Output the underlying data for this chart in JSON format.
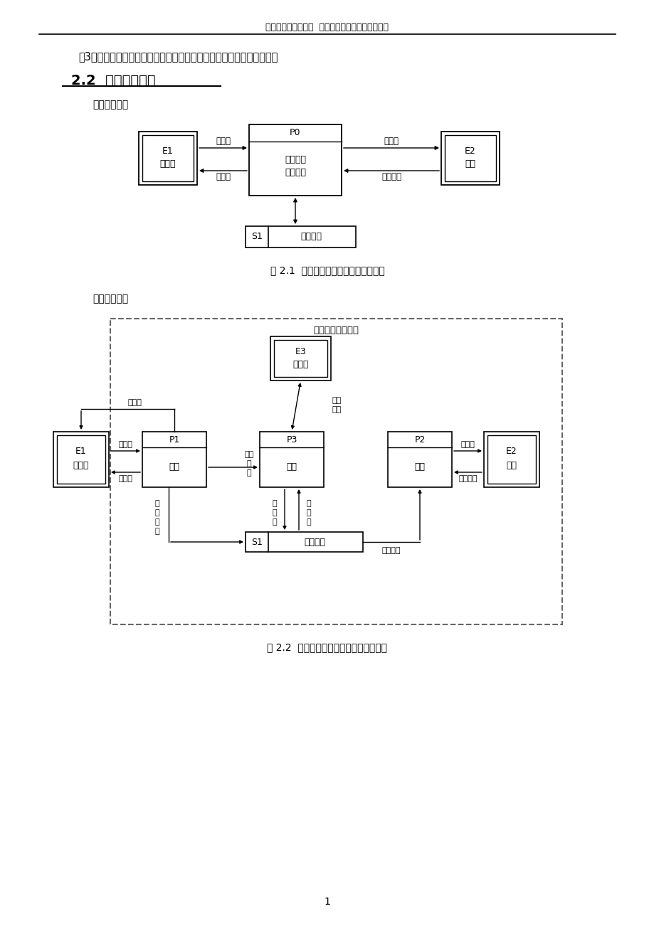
{
  "page_title": "计算机与信息工程系  《数据库原理》课程设计报告",
  "text_line1": "（3）收银员可实行对客户信息查询、库存管理、销售记录管理等操作。",
  "section_title": "2.2  系统数据流图",
  "subsection1": "顶层数据流图",
  "fig1_caption": "图 2.1  宠物用品销售系统顶层数据流图",
  "subsection2": "二层数据流图",
  "fig2_caption": "图 2.2  宠物用品销售系统第二层数据流图",
  "page_number": "1",
  "bg_color": "#ffffff"
}
